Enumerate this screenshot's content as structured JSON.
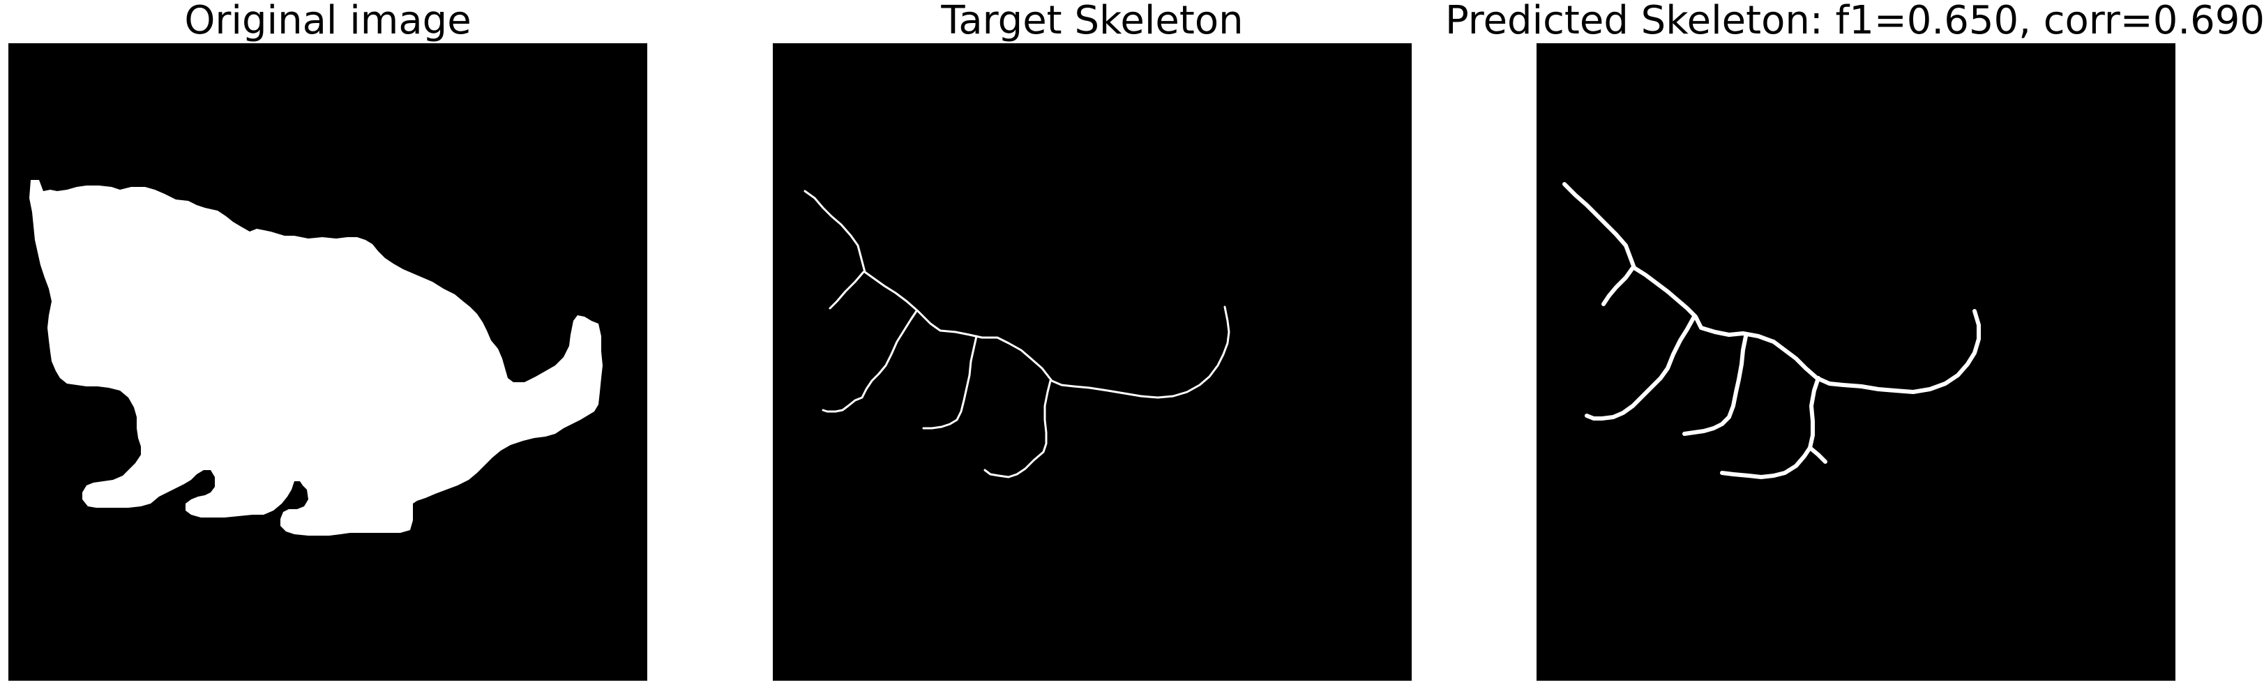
{
  "figure": {
    "panels": [
      {
        "id": "original",
        "title": "Original image"
      },
      {
        "id": "target",
        "title": "Target Skeleton"
      },
      {
        "id": "predicted",
        "title": "Predicted Skeleton: f1=0.650, corr=0.690"
      }
    ],
    "colors": {
      "background": "#000000",
      "foreground": "#ffffff",
      "page": "#ffffff"
    }
  }
}
